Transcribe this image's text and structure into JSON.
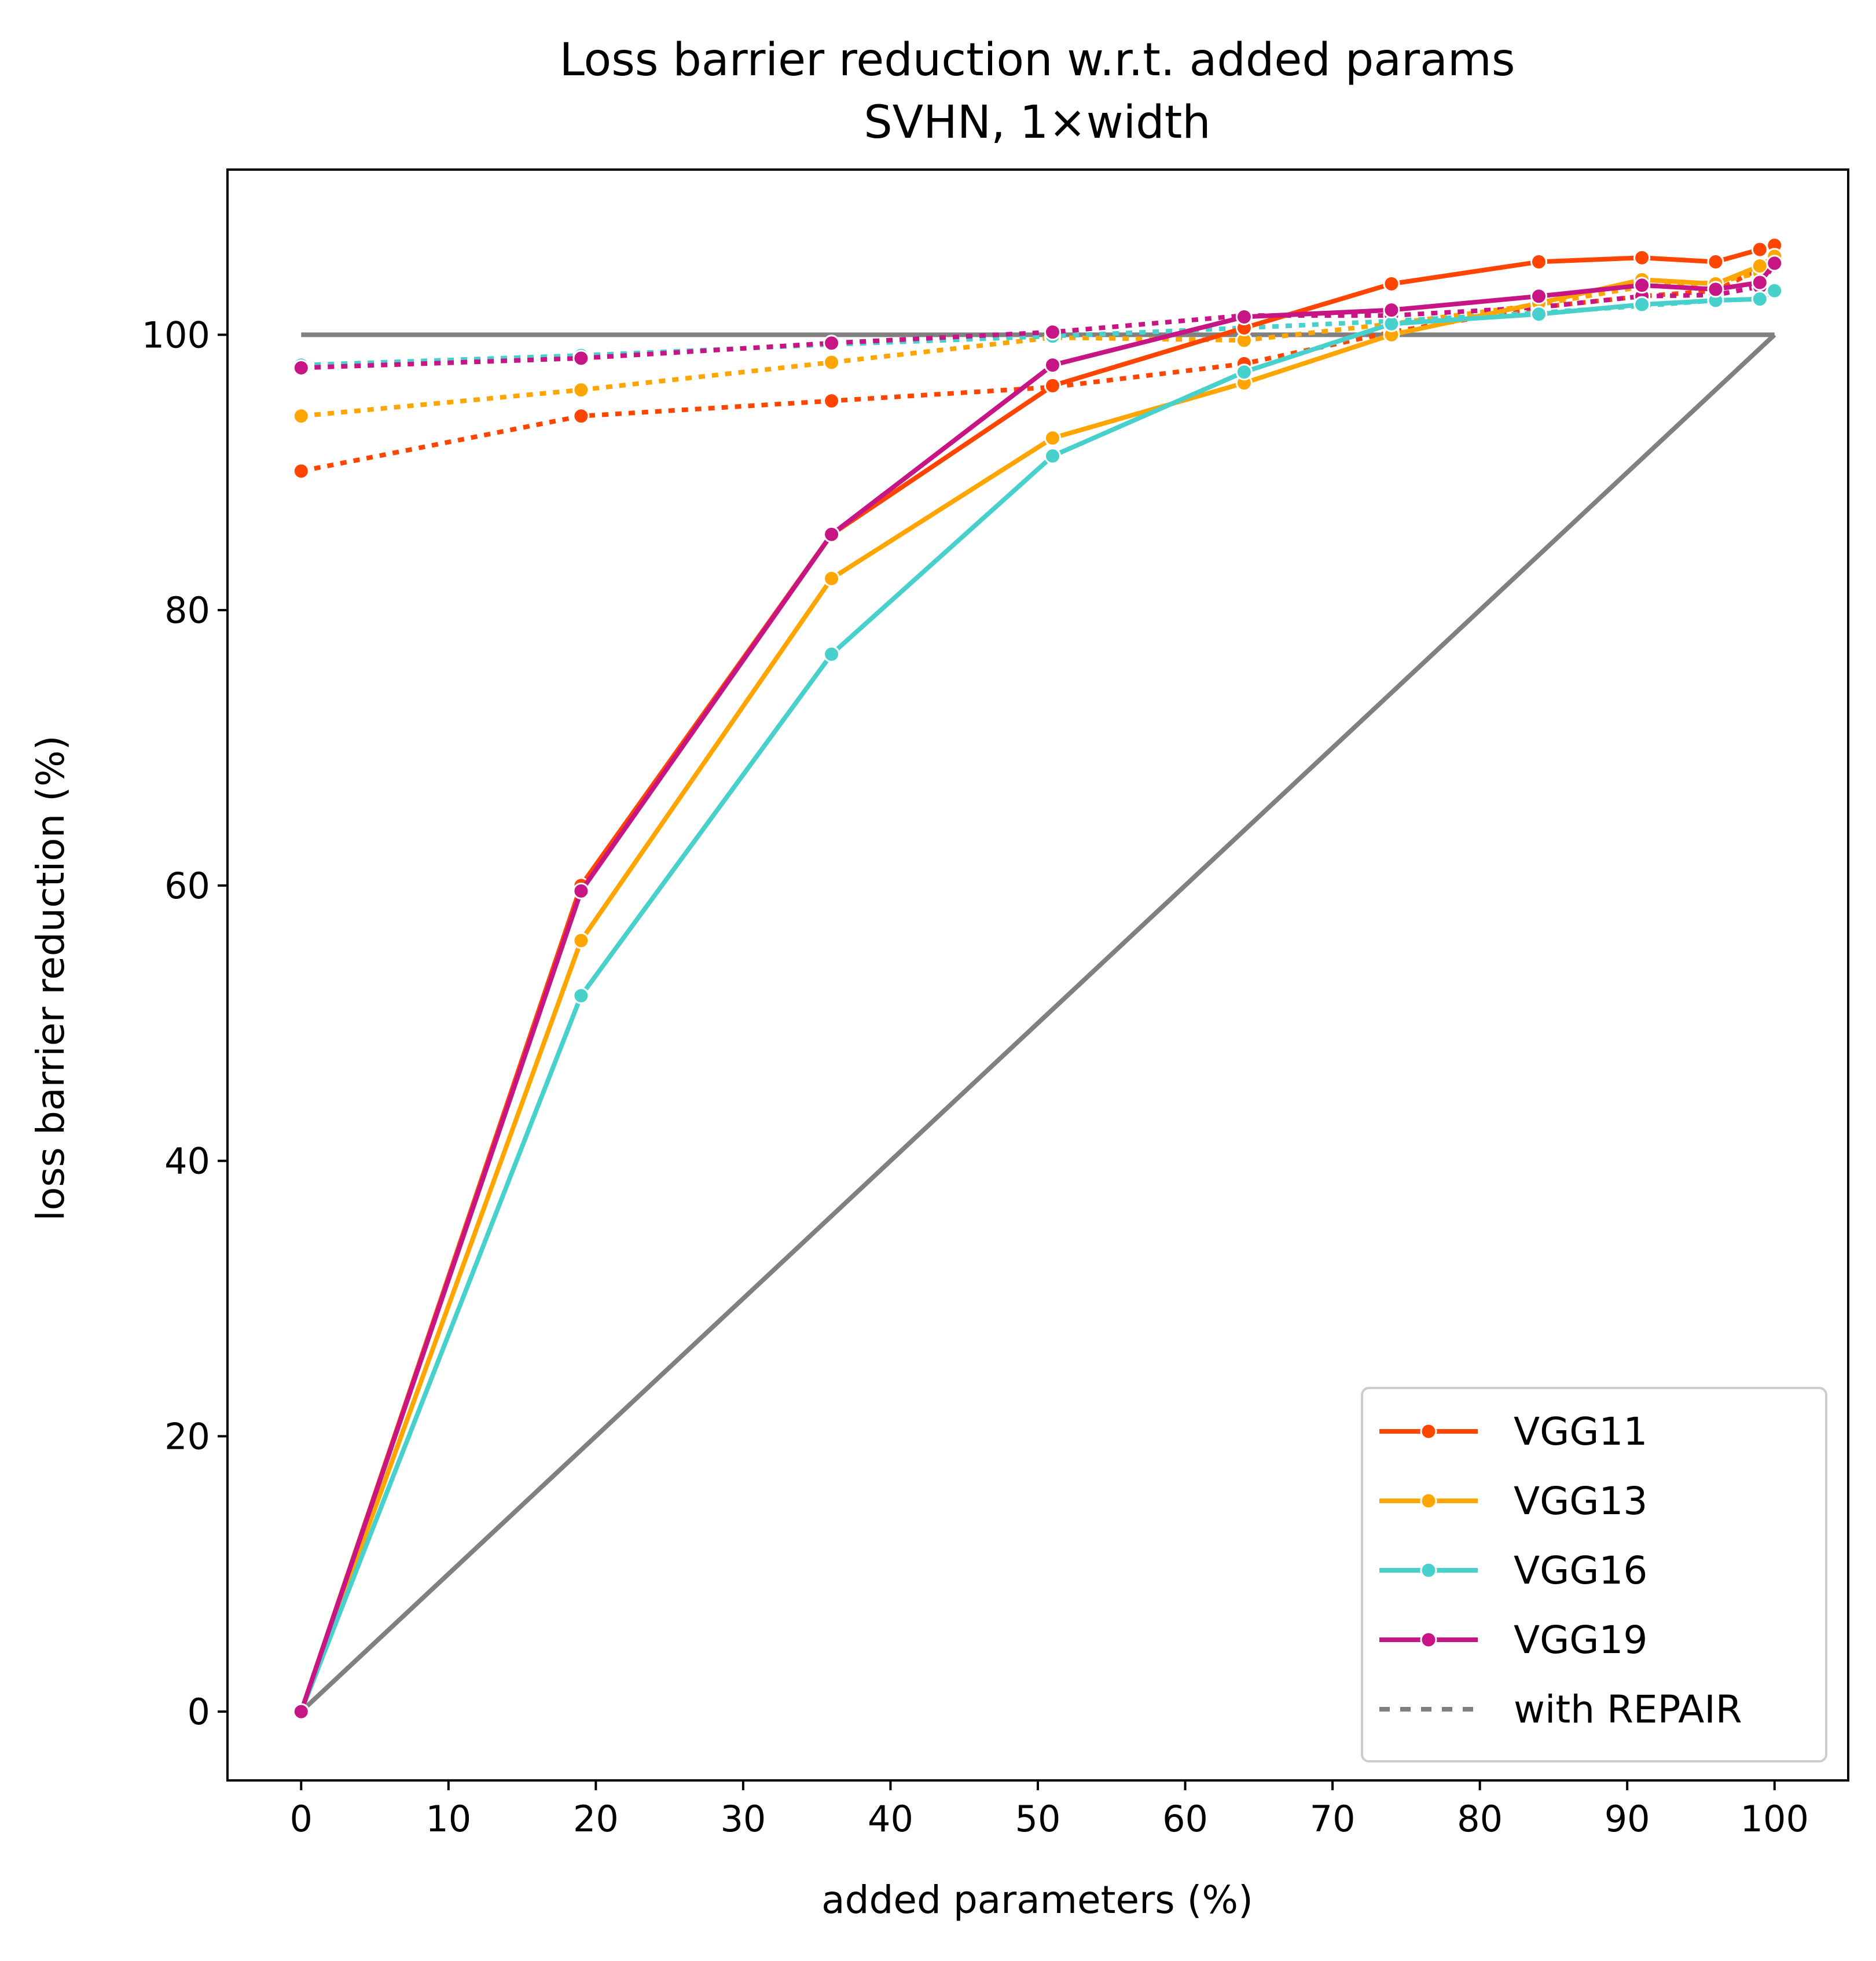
{
  "chart_data": {
    "type": "line",
    "title": "Loss barrier reduction w.r.t. added params",
    "subtitle": "SVHN, 1×width",
    "xlabel": "added parameters (%)",
    "ylabel": "loss barrier reduction (%)",
    "xlim": [
      -5,
      105
    ],
    "ylim": [
      -5,
      112
    ],
    "xticks": [
      0,
      10,
      20,
      30,
      40,
      50,
      60,
      70,
      80,
      90,
      100
    ],
    "yticks": [
      0,
      20,
      40,
      60,
      80,
      100
    ],
    "grid": false,
    "legend_position": "lower-right",
    "series": [
      {
        "name": "VGG11",
        "color": "#FF4500",
        "style": "solid",
        "x": [
          0,
          19,
          36,
          51,
          64,
          74,
          84,
          91,
          96,
          99,
          100
        ],
        "y": [
          0,
          60,
          85.5,
          96.3,
          100.5,
          103.7,
          105.3,
          105.6,
          105.3,
          106.2,
          106.5
        ]
      },
      {
        "name": "VGG13",
        "color": "#FFA500",
        "style": "solid",
        "x": [
          0,
          19,
          36,
          51,
          64,
          74,
          84,
          91,
          96,
          99,
          100
        ],
        "y": [
          0,
          56,
          82.3,
          92.5,
          96.5,
          100,
          102.3,
          104,
          103.7,
          105,
          105.7
        ]
      },
      {
        "name": "VGG16",
        "color": "#48D1CC",
        "style": "solid",
        "x": [
          0,
          19,
          36,
          51,
          64,
          74,
          84,
          91,
          96,
          99,
          100
        ],
        "y": [
          0,
          52,
          76.8,
          91.2,
          97.3,
          100.8,
          101.5,
          102.2,
          102.5,
          102.6,
          103.2
        ]
      },
      {
        "name": "VGG19",
        "color": "#C71585",
        "style": "solid",
        "x": [
          0,
          19,
          36,
          51,
          64,
          74,
          84,
          91,
          96,
          99,
          100
        ],
        "y": [
          0,
          59.6,
          85.5,
          97.8,
          101.3,
          101.8,
          102.8,
          103.6,
          103.3,
          103.8,
          105.2
        ]
      },
      {
        "name": "VGG11 with REPAIR",
        "color": "#FF4500",
        "style": "dotted",
        "x": [
          0,
          19,
          36,
          51,
          64,
          74,
          84,
          91,
          96,
          99,
          100
        ],
        "y": [
          90.1,
          94.1,
          95.2,
          96.2,
          97.9,
          100.2,
          102,
          102.8,
          103.2,
          104.8,
          105.3
        ]
      },
      {
        "name": "VGG13 with REPAIR",
        "color": "#FFA500",
        "style": "dotted",
        "x": [
          0,
          19,
          36,
          51,
          64,
          74,
          84,
          91,
          96,
          99,
          100
        ],
        "y": [
          94.1,
          96,
          98,
          99.8,
          99.6,
          100.8,
          102.2,
          103.5,
          103.8,
          104.5,
          105.5
        ]
      },
      {
        "name": "VGG16 with REPAIR",
        "color": "#48D1CC",
        "style": "dotted",
        "x": [
          0,
          19,
          36,
          51,
          64,
          74,
          84,
          91,
          96,
          99,
          100
        ],
        "y": [
          97.8,
          98.5,
          99.3,
          99.9,
          100.5,
          101,
          101.6,
          102.1,
          102.5,
          102.6,
          103.2
        ]
      },
      {
        "name": "VGG19 with REPAIR",
        "color": "#C71585",
        "style": "dotted",
        "x": [
          0,
          19,
          36,
          51,
          64,
          74,
          84,
          91,
          96,
          99,
          100
        ],
        "y": [
          97.6,
          98.3,
          99.4,
          100.2,
          101.4,
          101.4,
          102,
          102.8,
          102.9,
          103.5,
          105.2
        ]
      },
      {
        "color": "#808080",
        "style": "solid",
        "markers": false,
        "x": [
          0,
          100
        ],
        "y": [
          100,
          100
        ]
      },
      {
        "color": "#808080",
        "style": "solid",
        "markers": false,
        "x": [
          0,
          100
        ],
        "y": [
          0,
          100
        ]
      }
    ],
    "legend": [
      {
        "label": "VGG11",
        "color": "#FF4500",
        "style": "solid",
        "marker": true
      },
      {
        "label": "VGG13",
        "color": "#FFA500",
        "style": "solid",
        "marker": true
      },
      {
        "label": "VGG16",
        "color": "#48D1CC",
        "style": "solid",
        "marker": true
      },
      {
        "label": "VGG19",
        "color": "#C71585",
        "style": "solid",
        "marker": true
      },
      {
        "label": "with REPAIR",
        "color": "#808080",
        "style": "dotted",
        "marker": false
      }
    ]
  }
}
